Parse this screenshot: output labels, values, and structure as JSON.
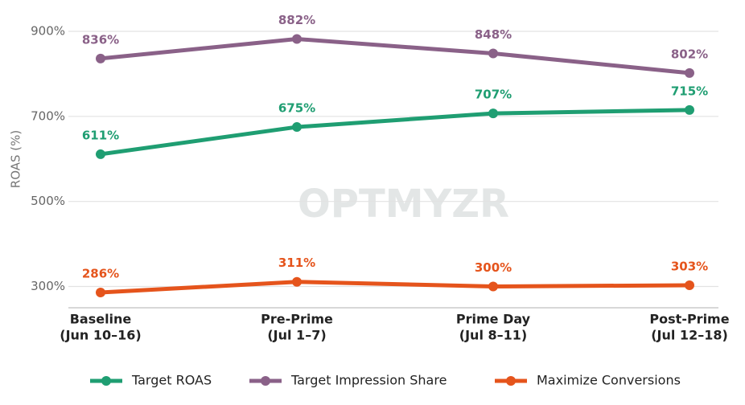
{
  "chart_data": {
    "type": "line",
    "y_label": "ROAS (%)",
    "watermark": "OPTMYZR",
    "categories": [
      [
        "Baseline",
        "(Jun 10–16)"
      ],
      [
        "Pre-Prime",
        "(Jul 1–7)"
      ],
      [
        "Prime Day",
        "(Jul 8–11)"
      ],
      [
        "Post-Prime",
        "(Jul 12–18)"
      ]
    ],
    "series": [
      {
        "name": "Target ROAS",
        "color": "#1f9e72",
        "values": [
          611,
          675,
          707,
          715
        ],
        "value_labels": [
          "611%",
          "675%",
          "707%",
          "715%"
        ]
      },
      {
        "name": "Target Impression Share",
        "color": "#8a6188",
        "values": [
          836,
          882,
          848,
          802
        ],
        "value_labels": [
          "836%",
          "882%",
          "848%",
          "802%"
        ]
      },
      {
        "name": "Maximize Conversions",
        "color": "#e5541c",
        "values": [
          286,
          311,
          300,
          303
        ],
        "value_labels": [
          "286%",
          "311%",
          "300%",
          "303%"
        ]
      }
    ],
    "ylim": [
      250,
      940
    ],
    "yticks": [
      {
        "value": 300,
        "label": "300%"
      },
      {
        "value": 500,
        "label": "500%"
      },
      {
        "value": 700,
        "label": "700%"
      },
      {
        "value": 900,
        "label": "900%"
      }
    ],
    "grid": true
  }
}
